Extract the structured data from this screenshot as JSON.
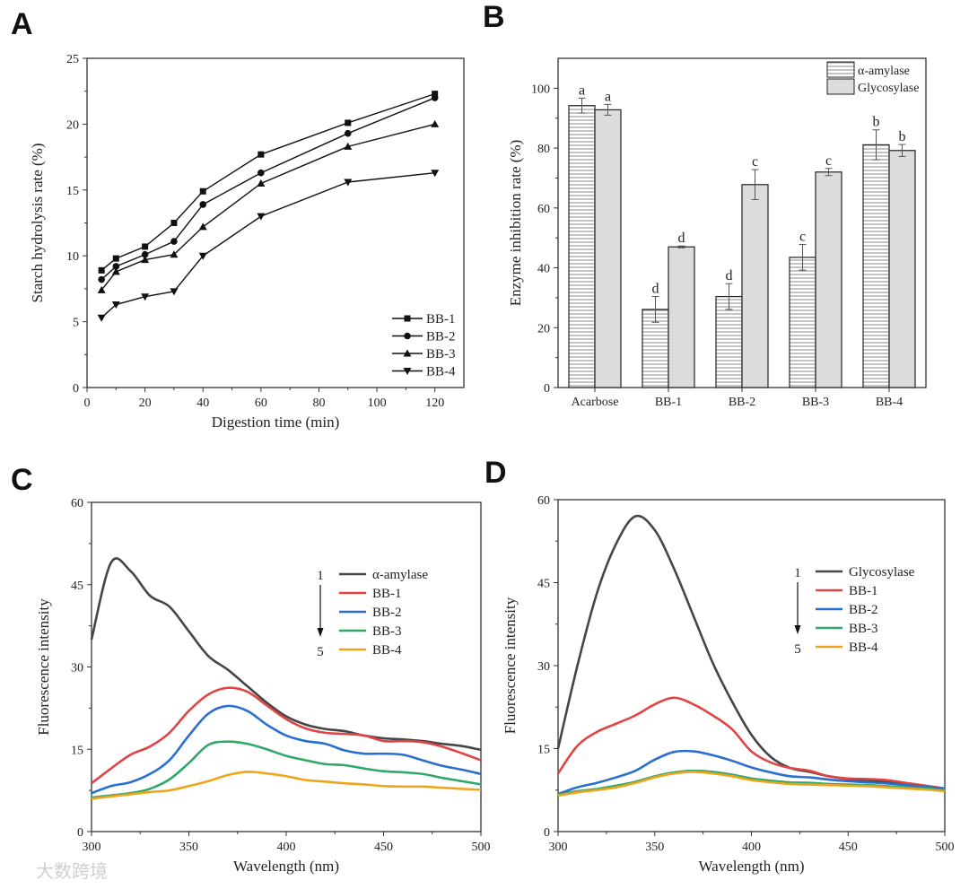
{
  "panels": [
    "A",
    "B",
    "C",
    "D"
  ],
  "watermark": "大数跨境",
  "chart_data": [
    {
      "type": "line",
      "panel": "A",
      "xlabel": "Digestion time (min)",
      "ylabel": "Starch hydrolysis rate (%)",
      "xlim": [
        0,
        130
      ],
      "ylim": [
        0,
        25
      ],
      "xticks": [
        0,
        20,
        40,
        60,
        80,
        100,
        120
      ],
      "yticks": [
        0,
        5,
        10,
        15,
        20,
        25
      ],
      "legend": "bottom-right",
      "x": [
        5,
        10,
        20,
        30,
        40,
        60,
        90,
        120
      ],
      "series": [
        {
          "name": "BB-1",
          "marker": "square",
          "values": [
            8.9,
            9.8,
            10.7,
            12.5,
            14.9,
            17.7,
            20.1,
            22.3
          ]
        },
        {
          "name": "BB-2",
          "marker": "circle",
          "values": [
            8.2,
            9.2,
            10.1,
            11.1,
            13.9,
            16.3,
            19.3,
            22.0
          ]
        },
        {
          "name": "BB-3",
          "marker": "triangle-up",
          "values": [
            7.4,
            8.8,
            9.7,
            10.1,
            12.2,
            15.5,
            18.3,
            20.0
          ]
        },
        {
          "name": "BB-4",
          "marker": "triangle-down",
          "values": [
            5.3,
            6.3,
            6.9,
            7.3,
            10.0,
            13.0,
            15.6,
            16.3
          ]
        }
      ]
    },
    {
      "type": "bar",
      "panel": "B",
      "xlabel": "",
      "ylabel": "Enzyme inhibition rate (%)",
      "ylim": [
        0,
        110
      ],
      "yticks": [
        0,
        20,
        40,
        60,
        80,
        100
      ],
      "legend": "top-right",
      "categories": [
        "Acarbose",
        "BB-1",
        "BB-2",
        "BB-3",
        "BB-4"
      ],
      "series": [
        {
          "name": "α-amylase",
          "values": [
            94.2,
            26.1,
            30.4,
            43.5,
            81.1
          ],
          "errors": [
            2.5,
            4.3,
            4.3,
            4.3,
            5.0
          ],
          "labels": [
            "a",
            "d",
            "d",
            "c",
            "b"
          ]
        },
        {
          "name": "Glycosylase",
          "values": [
            92.8,
            47.0,
            67.8,
            72.0,
            79.2
          ],
          "errors": [
            1.8,
            0.3,
            5.0,
            1.2,
            2.0
          ],
          "labels": [
            "a",
            "d",
            "c",
            "c",
            "b"
          ]
        }
      ]
    },
    {
      "type": "line",
      "panel": "C",
      "xlabel": "Wavelength (nm)",
      "ylabel": "Fluorescence intensity",
      "xlim": [
        300,
        500
      ],
      "ylim": [
        0,
        60
      ],
      "xticks": [
        300,
        350,
        400,
        450,
        500
      ],
      "yticks": [
        0,
        15,
        30,
        45,
        60
      ],
      "legend": "top-right",
      "arrow_labels": [
        "1",
        "5"
      ],
      "x": [
        300,
        310,
        320,
        330,
        340,
        350,
        360,
        370,
        380,
        390,
        400,
        410,
        420,
        430,
        440,
        450,
        460,
        470,
        480,
        490,
        500
      ],
      "series": [
        {
          "name": "α-amylase",
          "color": "#454545",
          "values": [
            35,
            49,
            47.5,
            43,
            41,
            36.5,
            32,
            29.5,
            26.5,
            23.5,
            21,
            19.5,
            18.7,
            18.3,
            17.5,
            17,
            16.8,
            16.5,
            16,
            15.6,
            14.9
          ]
        },
        {
          "name": "BB-1",
          "color": "#e04545",
          "values": [
            8.8,
            11.5,
            14,
            15.5,
            18,
            22,
            25,
            26.2,
            25.5,
            23,
            20.5,
            18.8,
            18,
            17.8,
            17.5,
            16.5,
            16.5,
            16.3,
            15.5,
            14.3,
            13
          ]
        },
        {
          "name": "BB-2",
          "color": "#2a6fd0",
          "values": [
            7,
            8.3,
            9,
            10.5,
            13,
            17.5,
            21.5,
            22.9,
            22,
            19.5,
            17.5,
            16.5,
            16,
            14.8,
            14.2,
            14.2,
            14,
            13,
            12,
            11.3,
            10.5
          ]
        },
        {
          "name": "BB-3",
          "color": "#2fa868",
          "values": [
            6.2,
            6.6,
            7,
            7.8,
            9.5,
            12.5,
            15.8,
            16.4,
            16,
            15,
            13.8,
            13,
            12.3,
            12.1,
            11.5,
            11,
            10.8,
            10.5,
            9.8,
            9.2,
            8.6
          ]
        },
        {
          "name": "BB-4",
          "color": "#eea51c",
          "values": [
            6,
            6.4,
            6.8,
            7.2,
            7.5,
            8.3,
            9.2,
            10.3,
            10.9,
            10.6,
            10.1,
            9.4,
            9.1,
            8.8,
            8.6,
            8.3,
            8.2,
            8.2,
            8,
            7.8,
            7.6
          ]
        }
      ]
    },
    {
      "type": "line",
      "panel": "D",
      "xlabel": "Wavelength (nm)",
      "ylabel": "Fluorescence intensity",
      "xlim": [
        300,
        500
      ],
      "ylim": [
        0,
        60
      ],
      "xticks": [
        300,
        350,
        400,
        450,
        500
      ],
      "yticks": [
        0,
        15,
        30,
        45,
        60
      ],
      "legend": "top-right",
      "arrow_labels": [
        "1",
        "5"
      ],
      "x": [
        300,
        310,
        320,
        330,
        340,
        350,
        360,
        370,
        380,
        390,
        400,
        410,
        420,
        430,
        440,
        450,
        460,
        470,
        480,
        490,
        500
      ],
      "series": [
        {
          "name": "Glycosylase",
          "color": "#454545",
          "values": [
            15,
            30,
            43,
            52,
            57,
            54.5,
            47.5,
            39,
            30.5,
            23.5,
            17.5,
            13.5,
            11.5,
            10.8,
            10,
            9.5,
            9.3,
            9,
            8.5,
            8.1,
            7.8
          ]
        },
        {
          "name": "BB-1",
          "color": "#e04545",
          "values": [
            10.5,
            15.5,
            18,
            19.5,
            21,
            23,
            24.2,
            23,
            21,
            18.5,
            14.5,
            12.5,
            11.5,
            11,
            10,
            9.6,
            9.5,
            9.3,
            8.8,
            8.3,
            7.8
          ]
        },
        {
          "name": "BB-2",
          "color": "#2a6fd0",
          "values": [
            6.8,
            8,
            8.8,
            9.8,
            11,
            13,
            14.4,
            14.5,
            13.8,
            12.8,
            11.6,
            10.7,
            10,
            9.8,
            9.4,
            9.1,
            8.9,
            8.7,
            8.4,
            8.1,
            7.8
          ]
        },
        {
          "name": "BB-3",
          "color": "#2fa868",
          "values": [
            6.7,
            7.3,
            7.7,
            8.3,
            9,
            10,
            10.7,
            11,
            10.8,
            10.3,
            9.6,
            9.2,
            8.9,
            8.8,
            8.6,
            8.5,
            8.4,
            8.2,
            8,
            7.8,
            7.5
          ]
        },
        {
          "name": "BB-4",
          "color": "#eea51c",
          "values": [
            6.5,
            7.1,
            7.5,
            8,
            8.8,
            9.8,
            10.5,
            10.8,
            10.5,
            10,
            9.3,
            8.9,
            8.6,
            8.5,
            8.4,
            8.3,
            8.2,
            8,
            7.8,
            7.6,
            7.3
          ]
        }
      ]
    }
  ]
}
